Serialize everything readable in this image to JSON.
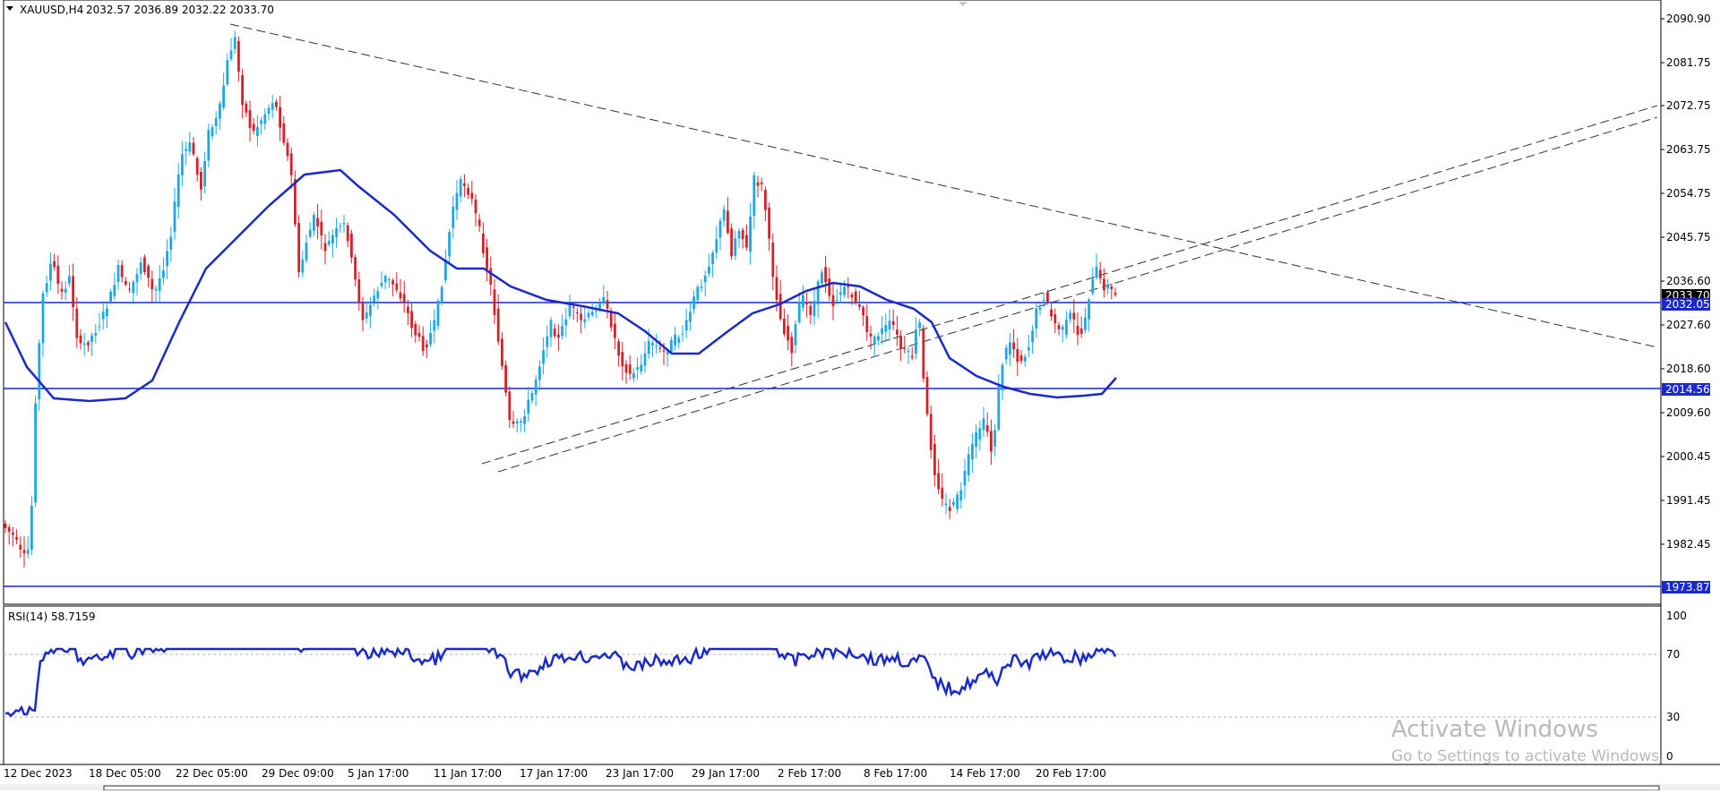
{
  "header": {
    "symbol": "XAUUSD,H4",
    "ohlc": "2032.57 2036.89 2032.22 2033.70"
  },
  "price_axis": {
    "labels": [
      "2090.90",
      "2081.75",
      "2072.75",
      "2063.75",
      "2054.75",
      "2045.75",
      "2036.60",
      "2027.60",
      "2018.60",
      "2009.60",
      "2000.45",
      "1991.45",
      "1982.45"
    ],
    "current_price": "2033.70",
    "level_labels": [
      "2032.05",
      "2014.56",
      "1973.87"
    ]
  },
  "time_axis": {
    "labels": [
      "12 Dec 2023",
      "18 Dec 05:00",
      "22 Dec 05:00",
      "29 Dec 09:00",
      "5 Jan 17:00",
      "11 Jan 17:00",
      "17 Jan 17:00",
      "23 Jan 17:00",
      "29 Jan 17:00",
      "2 Feb 17:00",
      "8 Feb 17:00",
      "14 Feb 17:00",
      "20 Feb 17:00"
    ]
  },
  "rsi": {
    "label": "RSI(14) 58.7159",
    "scale_labels": [
      "100",
      "70",
      "30",
      "0"
    ]
  },
  "watermark": {
    "line1": "Activate Windows",
    "line2": "Go to Settings to activate Windows."
  },
  "colors": {
    "bull_candle": "#1ea7e1",
    "bear_candle": "#d2232a",
    "moving_average": "#1a29c8",
    "level_line": "#1a29c8",
    "rsi_line": "#1a29c8",
    "trend_lines": "#333333"
  },
  "icons": {
    "panel_toggle": "triangle-down-icon",
    "scroll_marker": "chevron-down-icon"
  }
}
